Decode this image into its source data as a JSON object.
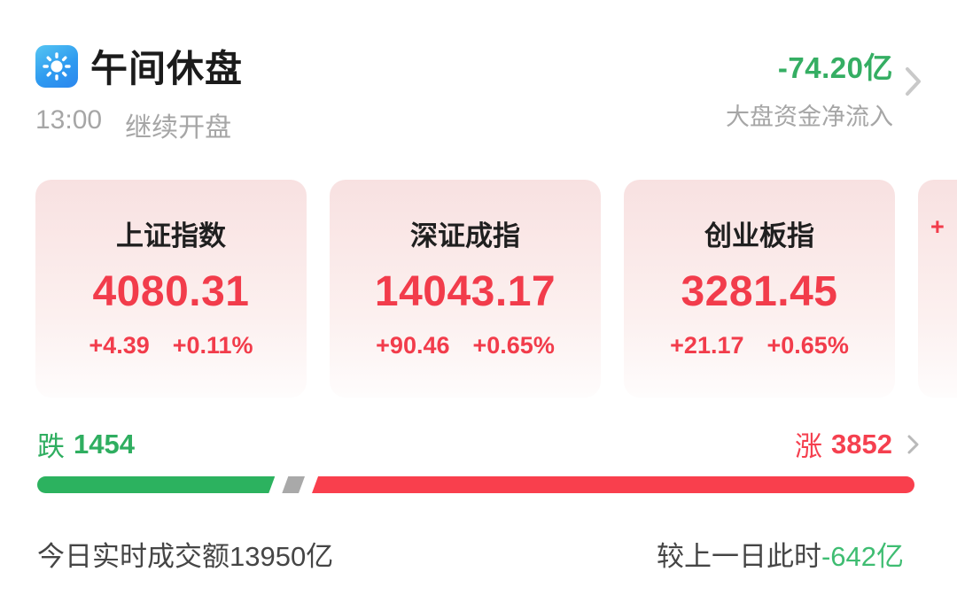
{
  "header": {
    "title": "午间休盘",
    "time": "13:00",
    "status": "继续开盘",
    "net_flow_value": "-74.20亿",
    "net_flow_label": "大盘资金净流入"
  },
  "indices": [
    {
      "name": "上证指数",
      "value": "4080.31",
      "change": "+4.39",
      "change_pct": "+0.11%"
    },
    {
      "name": "深证成指",
      "value": "14043.17",
      "change": "+90.46",
      "change_pct": "+0.65%"
    },
    {
      "name": "创业板指",
      "value": "3281.45",
      "change": "+21.17",
      "change_pct": "+0.65%"
    },
    {
      "name": "",
      "value": "",
      "change": "+",
      "change_pct": ""
    }
  ],
  "breadth": {
    "down_label": "跌",
    "down_count": "1454",
    "up_label": "涨",
    "up_count": "3852",
    "bar": {
      "down_pct": 27.1,
      "neutral_pct": 2.6
    }
  },
  "footer": {
    "turnover_text": "今日实时成交额13950亿",
    "vs_label": "较上一日此时",
    "vs_value": "-642亿"
  },
  "colors": {
    "up_red": "#f23c4b",
    "down_green": "#35ae63",
    "bar_red": "#f93f4d",
    "bar_green": "#2cb25f",
    "bar_neutral": "#a9a9a9",
    "icon_blue_top": "#55c5f2",
    "icon_blue_bottom": "#2b86ee",
    "card_pink_top": "#f8e1e1",
    "muted_gray": "#a6a6a6"
  }
}
